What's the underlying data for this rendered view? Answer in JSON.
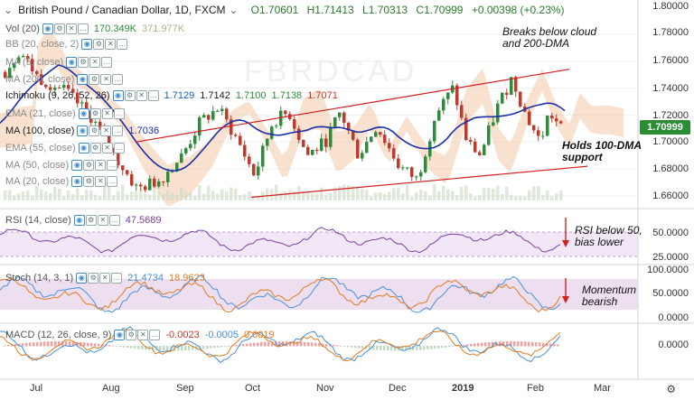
{
  "header": {
    "collapse_icon": "chevron-down-icon",
    "symbol_title": "British Pound / Canadian Dollar, 1D, FXCM",
    "dropdown_icon": "chevron-down-icon",
    "open": "O1.70601",
    "high": "H1.71413",
    "low": "L1.70313",
    "close": "C1.70999",
    "change": "+0.00398 (+0.23%)"
  },
  "indicators": [
    {
      "name": "Vol (20)",
      "values": [
        "170.349K",
        "371.977K"
      ]
    },
    {
      "name": "BB (20, close, 2)",
      "values": []
    },
    {
      "name": "MA (5, close)",
      "values": []
    },
    {
      "name": "MA (200, close)",
      "values": []
    },
    {
      "name": "Ichimoku (9, 26, 52, 26)",
      "values": [
        "1.7129",
        "1.7142",
        "1.7100",
        "1.7138",
        "1.7071"
      ]
    },
    {
      "name": "EMA (21, close)",
      "values": []
    },
    {
      "name": "MA (100, close)",
      "values": [
        "1.7036"
      ]
    },
    {
      "name": "EMA (55, close)",
      "values": []
    },
    {
      "name": "MA (50, close)",
      "values": []
    },
    {
      "name": "MA (20, close)",
      "values": []
    }
  ],
  "rsi": {
    "name": "RSI (14, close)",
    "value": "47.5689"
  },
  "stoch": {
    "name": "Stoch (14, 3, 1)",
    "k": "21.4734",
    "d": "18.9623"
  },
  "macd": {
    "name": "MACD (12, 26, close, 9)",
    "hist": "-0.0023",
    "macd": "-0.0005",
    "signal": "0.0019"
  },
  "annotations": {
    "cloud_note_1": "Breaks below cloud",
    "cloud_note_2": "and 200-DMA",
    "dma_note_1": "Holds 100-DMA",
    "dma_note_2": "support",
    "rsi_note_1": "RSI below 50,",
    "rsi_note_2": "bias lower",
    "stoch_note_1": "Momentum",
    "stoch_note_2": "bearish"
  },
  "price_axis": [
    "1.80000",
    "1.78000",
    "1.76000",
    "1.74000",
    "1.72000",
    "1.70000",
    "1.68000",
    "1.66000"
  ],
  "current_price": "1.70999",
  "rsi_axis": [
    "50.0000",
    "25.0000"
  ],
  "stoch_axis": [
    "100.0000",
    "50.0000",
    "0.0000"
  ],
  "macd_axis": [
    "0.0000"
  ],
  "time_axis": [
    "Jul",
    "Aug",
    "Sep",
    "Oct",
    "Nov",
    "Dec",
    "2019",
    "Feb",
    "Mar"
  ],
  "colors": {
    "up": "#2e8b3a",
    "down": "#c0392b",
    "ma100": "#1a2fa8",
    "rsi": "#7b3fa0",
    "stoch_k": "#4a90d9",
    "stoch_d": "#e07b20",
    "cloud": "#f3c9a6",
    "channel": "#d21f1f",
    "accent": "#2a8c33"
  }
}
